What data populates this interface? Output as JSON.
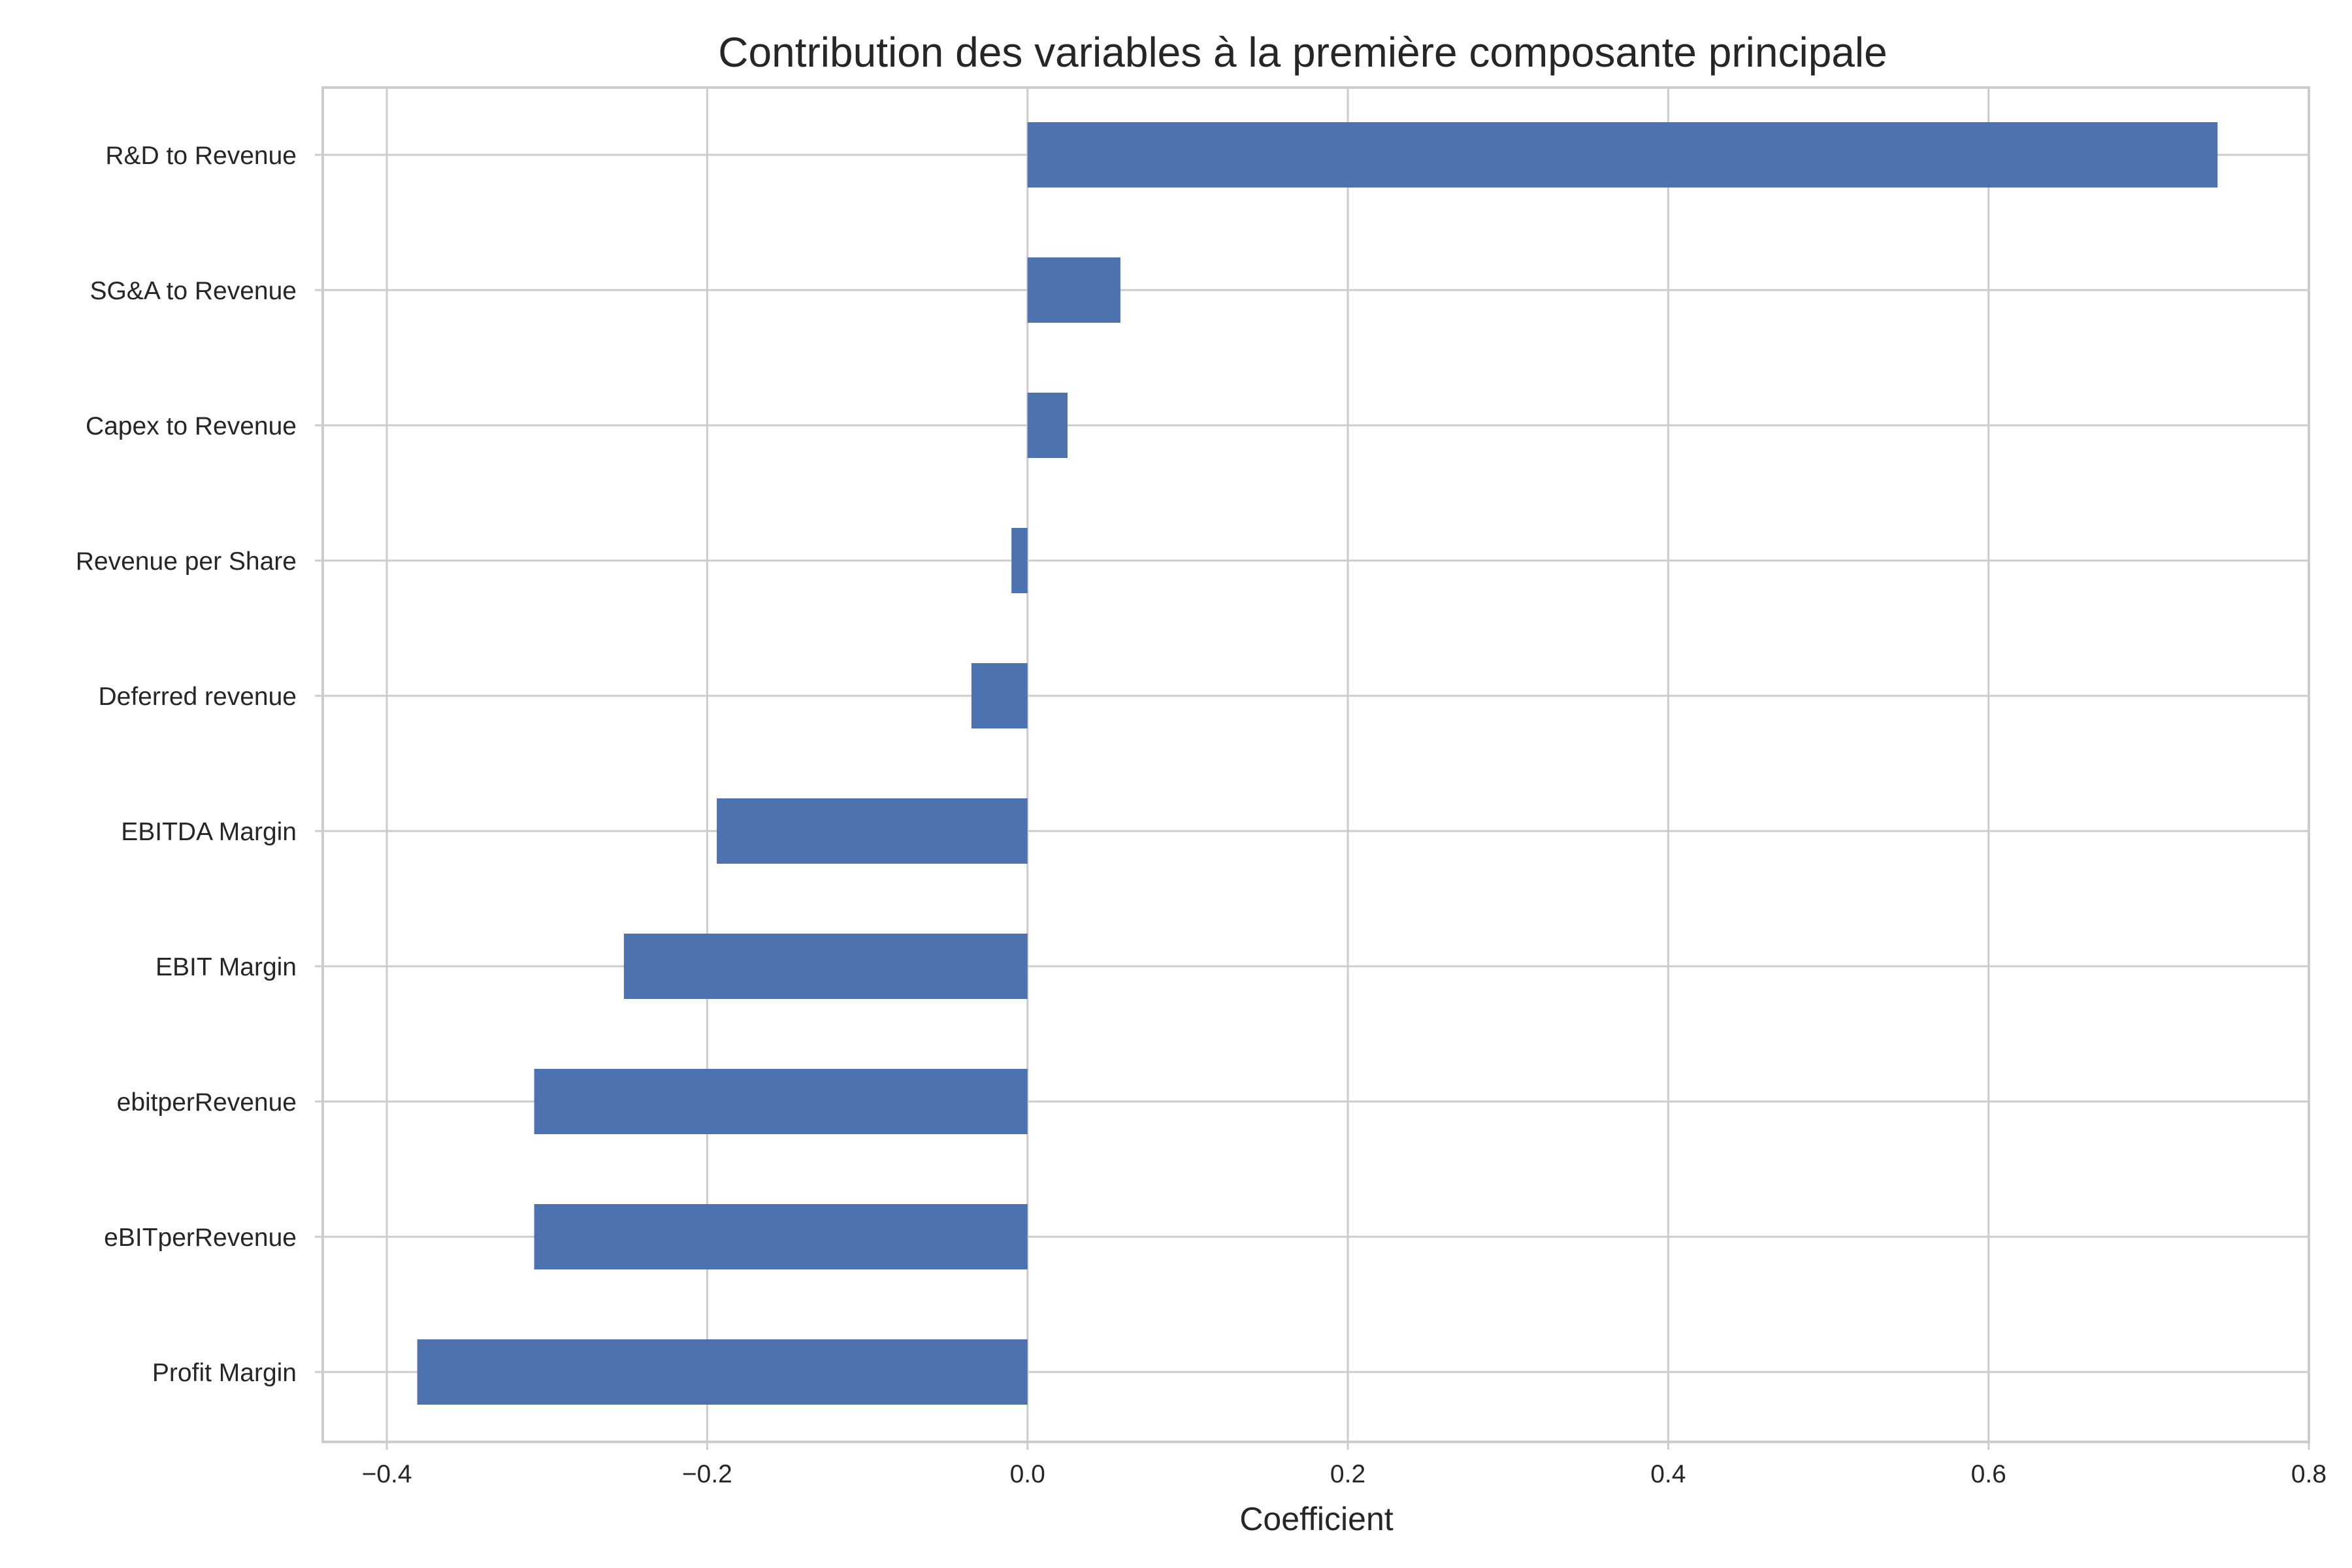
{
  "chart_data": {
    "type": "bar",
    "orientation": "horizontal",
    "title": "Contribution des variables à la première composante principale",
    "xlabel": "Coefficient",
    "ylabel": "",
    "categories": [
      "R&D to Revenue",
      "SG&A to Revenue",
      "Capex to Revenue",
      "Revenue per Share",
      "Deferred revenue",
      "EBITDA Margin",
      "EBIT Margin",
      "ebitperRevenue",
      "eBITperRevenue",
      "Profit Margin"
    ],
    "values": [
      0.743,
      0.058,
      0.025,
      -0.01,
      -0.035,
      -0.194,
      -0.252,
      -0.308,
      -0.308,
      -0.381
    ],
    "xlim": [
      -0.44,
      0.8
    ],
    "xticks": [
      -0.4,
      -0.2,
      0.0,
      0.2,
      0.4,
      0.6,
      0.8
    ],
    "xtick_labels": [
      "−0.4",
      "−0.2",
      "0.0",
      "0.2",
      "0.4",
      "0.6",
      "0.8"
    ],
    "grid": true,
    "legend": false,
    "colors": {
      "bar": "#4c72b0",
      "grid": "#cccccc",
      "frame": "#cccccc",
      "text": "#262626"
    }
  }
}
